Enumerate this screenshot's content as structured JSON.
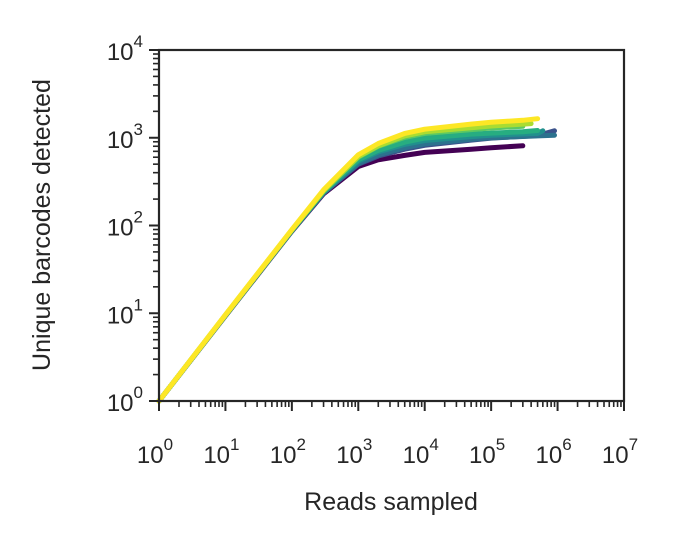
{
  "chart_data": {
    "type": "line",
    "xlabel": "Reads sampled",
    "ylabel": "Unique barcodes detected",
    "x_scale": "log",
    "y_scale": "log",
    "xlim": [
      1,
      10000000
    ],
    "ylim": [
      1,
      10000
    ],
    "x_ticks": [
      {
        "base": "10",
        "exp": "0",
        "value": 1
      },
      {
        "base": "10",
        "exp": "1",
        "value": 10
      },
      {
        "base": "10",
        "exp": "2",
        "value": 100
      },
      {
        "base": "10",
        "exp": "3",
        "value": 1000
      },
      {
        "base": "10",
        "exp": "4",
        "value": 10000
      },
      {
        "base": "10",
        "exp": "5",
        "value": 100000
      },
      {
        "base": "10",
        "exp": "6",
        "value": 1000000
      },
      {
        "base": "10",
        "exp": "7",
        "value": 10000000
      }
    ],
    "y_ticks": [
      {
        "base": "10",
        "exp": "0",
        "value": 1
      },
      {
        "base": "10",
        "exp": "1",
        "value": 10
      },
      {
        "base": "10",
        "exp": "2",
        "value": 100
      },
      {
        "base": "10",
        "exp": "3",
        "value": 1000
      },
      {
        "base": "10",
        "exp": "4",
        "value": 10000
      }
    ],
    "grid": false,
    "legend": "none",
    "series": [
      {
        "color": "#440154",
        "points": [
          [
            1,
            1
          ],
          [
            10,
            9.3
          ],
          [
            100,
            86
          ],
          [
            300,
            230
          ],
          [
            1000,
            470
          ],
          [
            2000,
            560
          ],
          [
            5000,
            630
          ],
          [
            10000,
            680
          ],
          [
            50000,
            740
          ],
          [
            100000,
            770
          ],
          [
            300000,
            810
          ]
        ]
      },
      {
        "color": "#3b528b",
        "points": [
          [
            1,
            1
          ],
          [
            10,
            9.4
          ],
          [
            100,
            87
          ],
          [
            300,
            235
          ],
          [
            1000,
            500
          ],
          [
            2000,
            620
          ],
          [
            5000,
            740
          ],
          [
            10000,
            820
          ],
          [
            50000,
            940
          ],
          [
            100000,
            990
          ],
          [
            500000,
            1060
          ],
          [
            900000,
            1200
          ]
        ]
      },
      {
        "color": "#2c728e",
        "points": [
          [
            1,
            1
          ],
          [
            10,
            9.4
          ],
          [
            100,
            87
          ],
          [
            300,
            235
          ],
          [
            1000,
            510
          ],
          [
            2000,
            640
          ],
          [
            5000,
            770
          ],
          [
            10000,
            850
          ],
          [
            50000,
            960
          ],
          [
            100000,
            1000
          ],
          [
            500000,
            1050
          ],
          [
            900000,
            1070
          ]
        ]
      },
      {
        "color": "#21908d",
        "points": [
          [
            1,
            1
          ],
          [
            10,
            9.4
          ],
          [
            100,
            88
          ],
          [
            300,
            240
          ],
          [
            1000,
            540
          ],
          [
            2000,
            690
          ],
          [
            5000,
            840
          ],
          [
            10000,
            930
          ],
          [
            50000,
            1030
          ],
          [
            100000,
            1070
          ],
          [
            500000,
            1120
          ],
          [
            600000,
            1200
          ]
        ]
      },
      {
        "color": "#27ad81",
        "points": [
          [
            1,
            1
          ],
          [
            10,
            9.5
          ],
          [
            100,
            88
          ],
          [
            300,
            242
          ],
          [
            1000,
            560
          ],
          [
            2000,
            720
          ],
          [
            5000,
            890
          ],
          [
            10000,
            990
          ],
          [
            50000,
            1100
          ],
          [
            100000,
            1130
          ],
          [
            300000,
            1170
          ],
          [
            500000,
            1210
          ]
        ]
      },
      {
        "color": "#5cc863",
        "points": [
          [
            1,
            1
          ],
          [
            10,
            9.5
          ],
          [
            100,
            89
          ],
          [
            300,
            248
          ],
          [
            1000,
            600
          ],
          [
            2000,
            800
          ],
          [
            5000,
            1010
          ],
          [
            10000,
            1120
          ],
          [
            50000,
            1240
          ],
          [
            100000,
            1290
          ],
          [
            300000,
            1350
          ]
        ]
      },
      {
        "color": "#aadc32",
        "points": [
          [
            1,
            1
          ],
          [
            10,
            9.5
          ],
          [
            100,
            89
          ],
          [
            300,
            250
          ],
          [
            1000,
            610
          ],
          [
            2000,
            810
          ],
          [
            5000,
            1050
          ],
          [
            10000,
            1170
          ],
          [
            50000,
            1300
          ],
          [
            100000,
            1360
          ],
          [
            400000,
            1450
          ]
        ]
      },
      {
        "color": "#fde725",
        "points": [
          [
            1,
            1
          ],
          [
            10,
            9.6
          ],
          [
            100,
            90
          ],
          [
            300,
            255
          ],
          [
            1000,
            640
          ],
          [
            2000,
            860
          ],
          [
            5000,
            1120
          ],
          [
            10000,
            1250
          ],
          [
            50000,
            1430
          ],
          [
            100000,
            1500
          ],
          [
            300000,
            1580
          ],
          [
            500000,
            1650
          ]
        ]
      }
    ]
  }
}
